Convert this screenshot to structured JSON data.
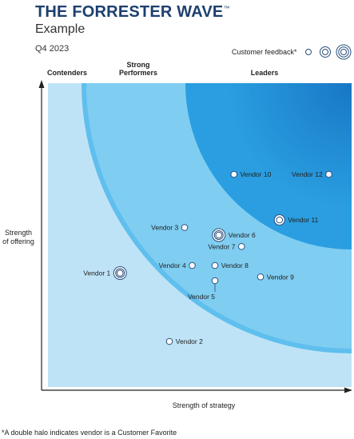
{
  "header": {
    "title": "THE FORRESTER WAVE",
    "trademark": "™",
    "subtitle": "Example",
    "date": "Q4 2023"
  },
  "legend": {
    "label": "Customer feedback*"
  },
  "chart_data": {
    "type": "scatter",
    "categories": [
      "Contenders",
      "Strong Performers",
      "Leaders"
    ],
    "xlabel": "Strength of strategy",
    "ylabel_line1": "Strength",
    "ylabel_line2": "of offering",
    "footnote": "*A double halo indicates vendor is a Customer Favorite",
    "colors": {
      "band_contenders": "#bfe3f6",
      "band_strong": "#7fcdf1",
      "band_contenders_outer": "#5fbfee",
      "band_leaders": "#2a9ee0",
      "band_leaders_core": "#1877c6"
    },
    "vendors": [
      {
        "name": "Vendor 1",
        "strategy": 1.9,
        "offering": 3.0,
        "halo": 2,
        "label_side": "left"
      },
      {
        "name": "Vendor 2",
        "strategy": 3.2,
        "offering": 1.2,
        "halo": 0,
        "label_side": "right"
      },
      {
        "name": "Vendor 3",
        "strategy": 3.6,
        "offering": 4.2,
        "halo": 0,
        "label_side": "left"
      },
      {
        "name": "Vendor 4",
        "strategy": 3.8,
        "offering": 3.2,
        "halo": 0,
        "label_side": "left"
      },
      {
        "name": "Vendor 5",
        "strategy": 4.4,
        "offering": 2.8,
        "halo": 0,
        "label_side": "below"
      },
      {
        "name": "Vendor 6",
        "strategy": 4.5,
        "offering": 4.0,
        "halo": 2,
        "label_side": "right"
      },
      {
        "name": "Vendor 7",
        "strategy": 5.1,
        "offering": 3.7,
        "halo": 0,
        "label_side": "left"
      },
      {
        "name": "Vendor 8",
        "strategy": 4.4,
        "offering": 3.2,
        "halo": 0,
        "label_side": "right"
      },
      {
        "name": "Vendor 9",
        "strategy": 5.6,
        "offering": 2.9,
        "halo": 0,
        "label_side": "right"
      },
      {
        "name": "Vendor 10",
        "strategy": 4.9,
        "offering": 5.6,
        "halo": 0,
        "label_side": "right"
      },
      {
        "name": "Vendor 11",
        "strategy": 6.1,
        "offering": 4.4,
        "halo": 1,
        "label_side": "right"
      },
      {
        "name": "Vendor 12",
        "strategy": 7.4,
        "offering": 5.6,
        "halo": 0,
        "label_side": "left"
      }
    ]
  }
}
